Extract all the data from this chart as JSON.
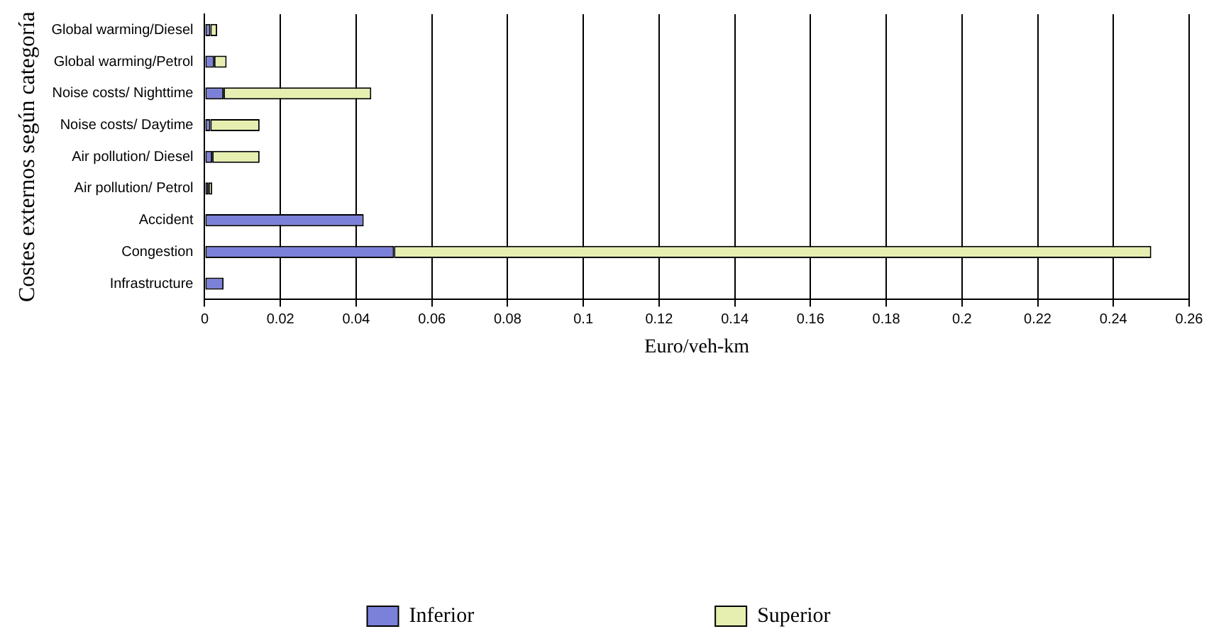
{
  "chart_data": {
    "type": "bar",
    "orientation": "horizontal",
    "stacked": true,
    "xlabel": "Euro/veh-km",
    "ylabel": "Costes externos según categoría",
    "categories": [
      "Global warming/Diesel",
      "Global warming/Petrol",
      "Noise costs/ Nighttime",
      "Noise costs/ Daytime",
      "Air pollution/ Diesel",
      "Air pollution/ Petrol",
      "Accident",
      "Congestion",
      "Infrastructure"
    ],
    "series": [
      {
        "name": "Inferior",
        "color": "#7b80d8",
        "values": [
          0.0015,
          0.0025,
          0.005,
          0.0015,
          0.002,
          0.001,
          0.042,
          0.05,
          0.005
        ]
      },
      {
        "name": "Superior",
        "color": "#e6efb0",
        "values": [
          0.0018,
          0.0033,
          0.039,
          0.013,
          0.0125,
          0.001,
          0,
          0.2,
          0
        ]
      }
    ],
    "xlim": [
      0,
      0.26
    ],
    "xticks": [
      0,
      0.02,
      0.04,
      0.06,
      0.08,
      0.1,
      0.12,
      0.14,
      0.16,
      0.18,
      0.2,
      0.22,
      0.24,
      0.26
    ],
    "grid": "x",
    "legend": "bottom"
  }
}
